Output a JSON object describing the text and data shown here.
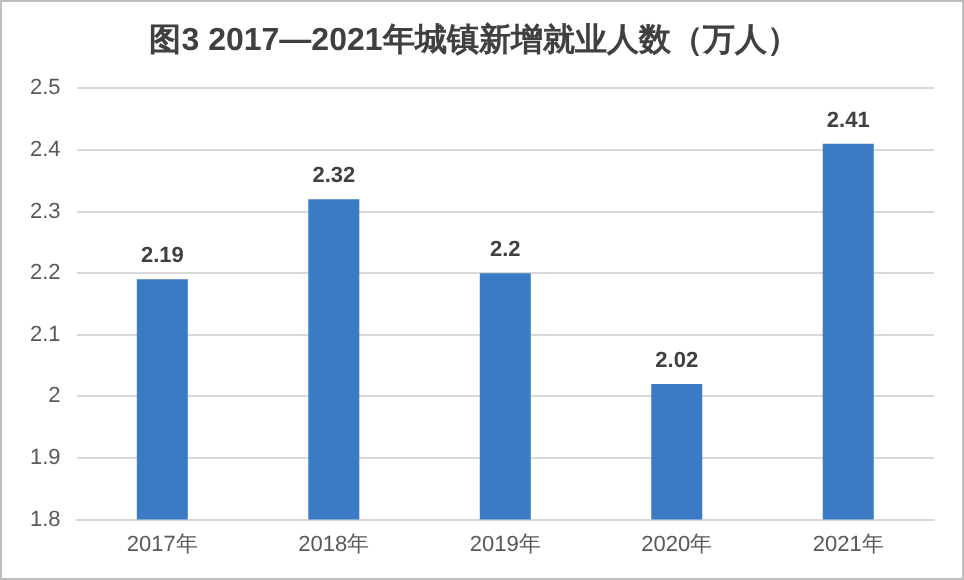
{
  "chart_data": {
    "type": "bar",
    "title": "图3 2017—2021年城镇新增就业人数（万人）",
    "categories": [
      "2017年",
      "2018年",
      "2019年",
      "2020年",
      "2021年"
    ],
    "values": [
      2.19,
      2.32,
      2.2,
      2.02,
      2.41
    ],
    "color": "#3b7bc4",
    "ylim": [
      1.8,
      2.5
    ],
    "yticks": [
      1.8,
      1.9,
      2,
      2.1,
      2.2,
      2.3,
      2.4,
      2.5
    ],
    "grid": "y",
    "data_labels": true
  }
}
